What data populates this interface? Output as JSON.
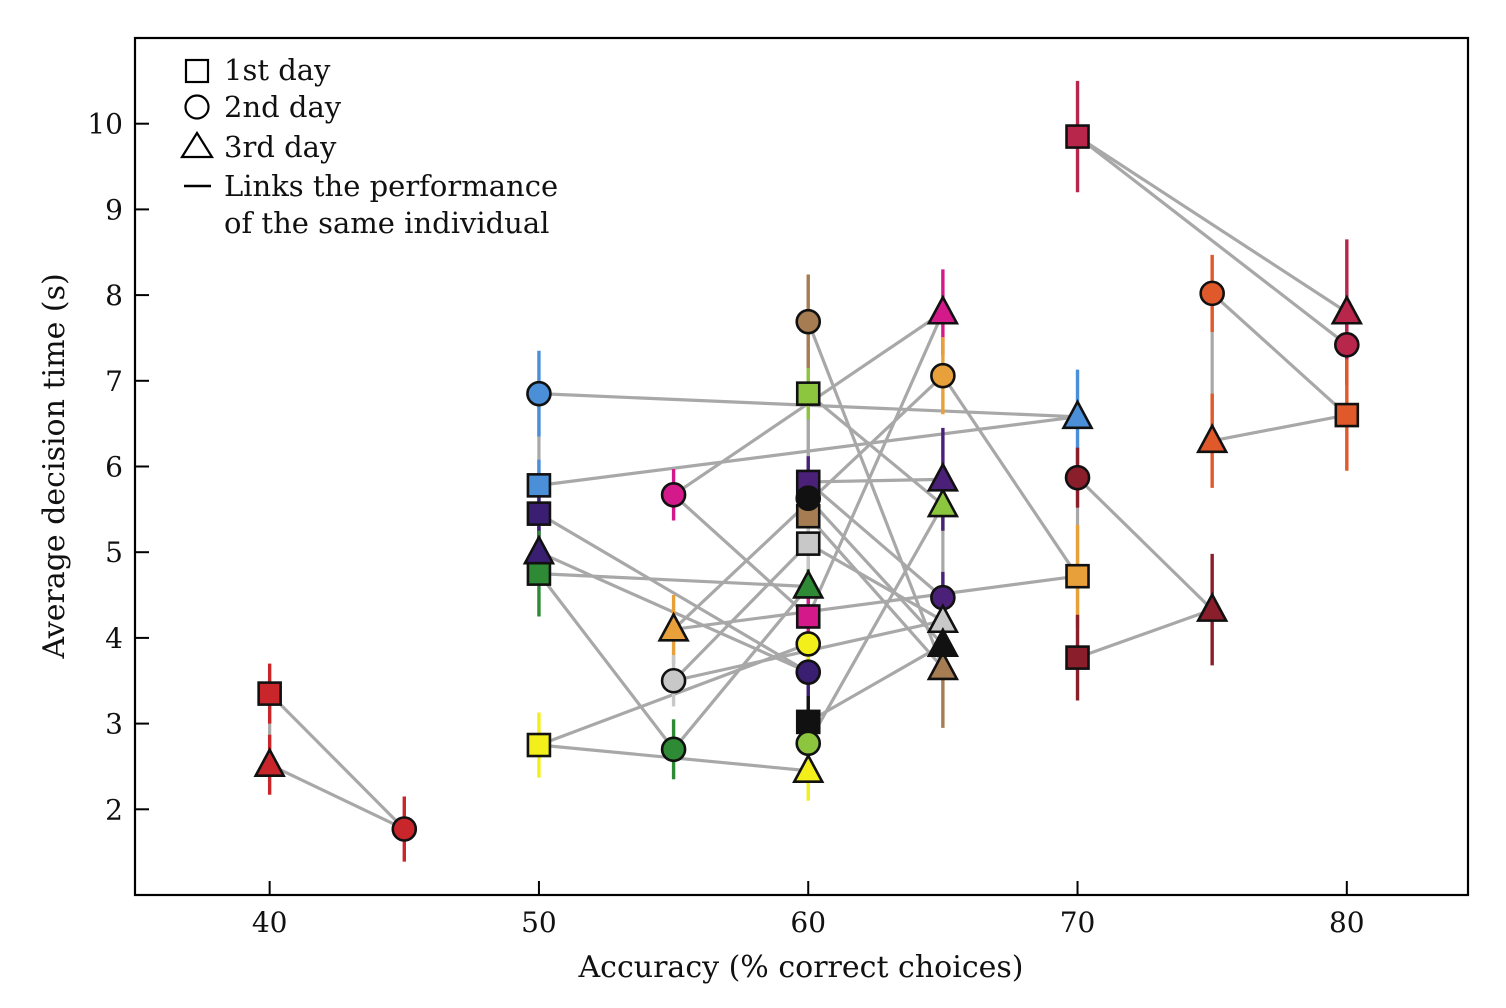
{
  "chart_data": {
    "type": "scatter",
    "title": "",
    "xlabel": "Accuracy (% correct choices)",
    "ylabel": "Average decision time (s)",
    "xlim": [
      35,
      84.5
    ],
    "ylim": [
      1.0,
      11.0
    ],
    "xticks": [
      "40",
      "50",
      "60",
      "70",
      "80"
    ],
    "yticks": [
      "2",
      "3",
      "4",
      "5",
      "6",
      "7",
      "8",
      "9",
      "10"
    ],
    "grid": false,
    "legend": {
      "placement": "top-left",
      "entries": [
        {
          "marker": "square",
          "label": "1st day"
        },
        {
          "marker": "circle",
          "label": "2nd day"
        },
        {
          "marker": "triangle",
          "label": "3rd day"
        },
        {
          "marker": "line",
          "label": "Links the performance",
          "label2": "of the same individual"
        }
      ]
    },
    "individuals": [
      {
        "color": "#c8262a",
        "points": [
          {
            "day": 1,
            "x": 40,
            "y": 3.35,
            "err": 0.35
          },
          {
            "day": 2,
            "x": 45,
            "y": 1.77,
            "err": 0.38
          },
          {
            "day": 3,
            "x": 40,
            "y": 2.52,
            "err": 0.35
          }
        ]
      },
      {
        "color": "#4a8fd8",
        "points": [
          {
            "day": 1,
            "x": 50,
            "y": 5.78,
            "err": 0.3
          },
          {
            "day": 2,
            "x": 50,
            "y": 6.85,
            "err": 0.5
          },
          {
            "day": 3,
            "x": 70,
            "y": 6.58,
            "err": 0.55
          }
        ]
      },
      {
        "color": "#3a1e72",
        "points": [
          {
            "day": 1,
            "x": 50,
            "y": 5.45,
            "err": 0.3
          },
          {
            "day": 2,
            "x": 60,
            "y": 3.6,
            "err": 0.3
          },
          {
            "day": 3,
            "x": 50,
            "y": 5.0,
            "err": 0.3
          }
        ]
      },
      {
        "color": "#2e8a35",
        "points": [
          {
            "day": 1,
            "x": 50,
            "y": 4.75,
            "err": 0.5
          },
          {
            "day": 2,
            "x": 55,
            "y": 2.7,
            "err": 0.35
          },
          {
            "day": 3,
            "x": 60,
            "y": 4.6,
            "err": 0.3
          }
        ]
      },
      {
        "color": "#f2ef1a",
        "points": [
          {
            "day": 1,
            "x": 50,
            "y": 2.75,
            "err": 0.38
          },
          {
            "day": 2,
            "x": 60,
            "y": 3.93,
            "err": 0.3
          },
          {
            "day": 3,
            "x": 60,
            "y": 2.45,
            "err": 0.35
          }
        ]
      },
      {
        "color": "#d41a8a",
        "points": [
          {
            "day": 1,
            "x": 60,
            "y": 4.25,
            "err": 0.3
          },
          {
            "day": 2,
            "x": 55,
            "y": 5.67,
            "err": 0.3
          },
          {
            "day": 3,
            "x": 65,
            "y": 7.8,
            "err": 0.5
          }
        ]
      },
      {
        "color": "#e8a03a",
        "points": [
          {
            "day": 1,
            "x": 70,
            "y": 4.72,
            "err": 0.6
          },
          {
            "day": 2,
            "x": 65,
            "y": 7.06,
            "err": 0.45
          },
          {
            "day": 3,
            "x": 55,
            "y": 4.1,
            "err": 0.4
          }
        ]
      },
      {
        "color": "#a67c52",
        "points": [
          {
            "day": 1,
            "x": 60,
            "y": 5.42,
            "err": 0.3
          },
          {
            "day": 2,
            "x": 60,
            "y": 7.69,
            "err": 0.55
          },
          {
            "day": 3,
            "x": 65,
            "y": 3.65,
            "err": 0.7
          }
        ]
      },
      {
        "color": "#8cc63f",
        "points": [
          {
            "day": 1,
            "x": 60,
            "y": 6.85,
            "err": 0.3
          },
          {
            "day": 2,
            "x": 60,
            "y": 2.77,
            "err": 0.3
          },
          {
            "day": 3,
            "x": 65,
            "y": 5.55,
            "err": 0.3
          }
        ]
      },
      {
        "color": "#c8c8c8",
        "points": [
          {
            "day": 1,
            "x": 60,
            "y": 5.1,
            "err": 0.3
          },
          {
            "day": 2,
            "x": 55,
            "y": 3.5,
            "err": 0.3
          },
          {
            "day": 3,
            "x": 65,
            "y": 4.2,
            "err": 0.3
          }
        ]
      },
      {
        "color": "#111111",
        "points": [
          {
            "day": 1,
            "x": 60,
            "y": 3.02,
            "err": 0.3
          },
          {
            "day": 2,
            "x": 60,
            "y": 5.63,
            "err": 0.3
          },
          {
            "day": 3,
            "x": 65,
            "y": 3.92,
            "err": 0.3
          }
        ]
      },
      {
        "color": "#4b2078",
        "points": [
          {
            "day": 1,
            "x": 60,
            "y": 5.82,
            "err": 0.3
          },
          {
            "day": 2,
            "x": 65,
            "y": 4.47,
            "err": 0.3
          },
          {
            "day": 3,
            "x": 65,
            "y": 5.85,
            "err": 0.6
          }
        ]
      },
      {
        "color": "#b8264c",
        "points": [
          {
            "day": 1,
            "x": 70,
            "y": 9.85,
            "err": 0.65
          },
          {
            "day": 2,
            "x": 80,
            "y": 7.42,
            "err": 0.45
          },
          {
            "day": 3,
            "x": 80,
            "y": 7.8,
            "err": 0.85
          }
        ]
      },
      {
        "color": "#e0592a",
        "points": [
          {
            "day": 1,
            "x": 80,
            "y": 6.6,
            "err": 0.65
          },
          {
            "day": 2,
            "x": 75,
            "y": 8.02,
            "err": 0.45
          },
          {
            "day": 3,
            "x": 75,
            "y": 6.3,
            "err": 0.55
          }
        ]
      },
      {
        "color": "#8a1e2a",
        "points": [
          {
            "day": 1,
            "x": 70,
            "y": 3.77,
            "err": 0.5
          },
          {
            "day": 2,
            "x": 70,
            "y": 5.87,
            "err": 0.35
          },
          {
            "day": 3,
            "x": 75,
            "y": 4.33,
            "err": 0.65
          }
        ]
      }
    ]
  }
}
